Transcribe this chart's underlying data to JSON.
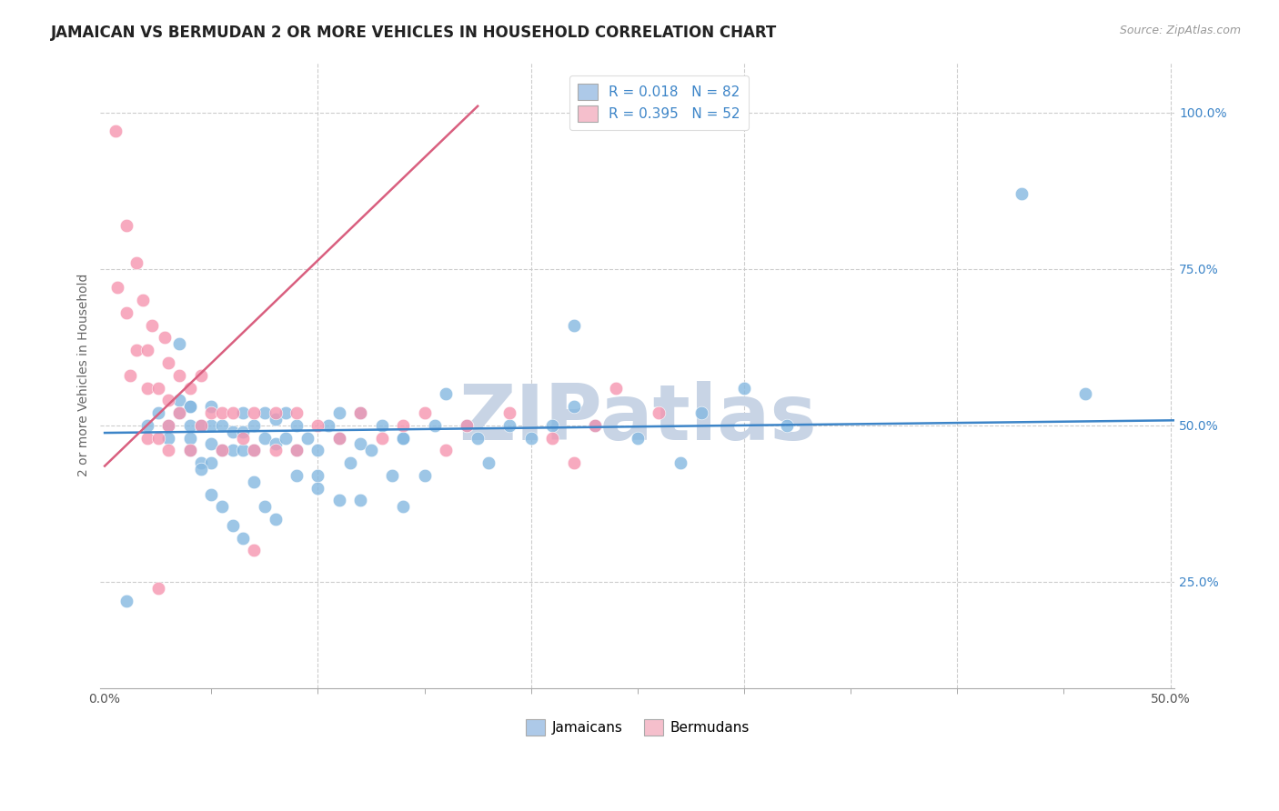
{
  "title": "JAMAICAN VS BERMUDAN 2 OR MORE VEHICLES IN HOUSEHOLD CORRELATION CHART",
  "source_text": "Source: ZipAtlas.com",
  "ylabel": "2 or more Vehicles in Household",
  "xlim": [
    -0.002,
    0.502
  ],
  "ylim": [
    0.08,
    1.08
  ],
  "xtick_labels_bottom": [
    "0.0%",
    "50.0%"
  ],
  "xtick_vals_bottom": [
    0.0,
    0.5
  ],
  "xtick_minor_vals": [
    0.05,
    0.1,
    0.15,
    0.2,
    0.25,
    0.3,
    0.35,
    0.4,
    0.45
  ],
  "xtick_grid_vals": [
    0.1,
    0.2,
    0.3,
    0.4,
    0.5
  ],
  "ytick_labels": [
    "100.0%",
    "75.0%",
    "50.0%",
    "25.0%"
  ],
  "ytick_vals": [
    1.0,
    0.75,
    0.5,
    0.25
  ],
  "ytick_grid_vals": [
    1.0,
    0.75,
    0.5,
    0.25
  ],
  "legend_blue_label": "R = 0.018   N = 82",
  "legend_pink_label": "R = 0.395   N = 52",
  "legend_blue_color": "#adc9e8",
  "legend_pink_color": "#f5bfcc",
  "scatter_blue_color": "#85b8e0",
  "scatter_pink_color": "#f595b0",
  "line_blue_color": "#3d85c8",
  "line_pink_color": "#d95f7f",
  "watermark_text": "ZIPatlas",
  "watermark_color": "#c8d4e5",
  "title_fontsize": 12,
  "axis_label_fontsize": 10,
  "tick_fontsize": 10,
  "legend_fontsize": 11,
  "jamaicans_label": "Jamaicans",
  "bermudans_label": "Bermudans",
  "blue_scatter_x": [
    0.01,
    0.02,
    0.025,
    0.03,
    0.03,
    0.035,
    0.035,
    0.04,
    0.04,
    0.04,
    0.04,
    0.045,
    0.045,
    0.05,
    0.05,
    0.05,
    0.05,
    0.055,
    0.055,
    0.06,
    0.06,
    0.065,
    0.065,
    0.065,
    0.07,
    0.07,
    0.075,
    0.075,
    0.08,
    0.08,
    0.085,
    0.085,
    0.09,
    0.09,
    0.095,
    0.1,
    0.1,
    0.105,
    0.11,
    0.11,
    0.115,
    0.12,
    0.12,
    0.125,
    0.13,
    0.135,
    0.14,
    0.14,
    0.15,
    0.155,
    0.16,
    0.17,
    0.175,
    0.18,
    0.19,
    0.2,
    0.21,
    0.22,
    0.23,
    0.25,
    0.27,
    0.28,
    0.3,
    0.32,
    0.035,
    0.04,
    0.045,
    0.05,
    0.055,
    0.06,
    0.065,
    0.07,
    0.075,
    0.08,
    0.09,
    0.1,
    0.11,
    0.12,
    0.14,
    0.43,
    0.46,
    0.22
  ],
  "blue_scatter_y": [
    0.22,
    0.5,
    0.52,
    0.48,
    0.5,
    0.52,
    0.54,
    0.46,
    0.48,
    0.5,
    0.53,
    0.44,
    0.5,
    0.44,
    0.47,
    0.5,
    0.53,
    0.46,
    0.5,
    0.46,
    0.49,
    0.46,
    0.49,
    0.52,
    0.46,
    0.5,
    0.48,
    0.52,
    0.47,
    0.51,
    0.48,
    0.52,
    0.46,
    0.5,
    0.48,
    0.42,
    0.46,
    0.5,
    0.48,
    0.52,
    0.44,
    0.47,
    0.52,
    0.46,
    0.5,
    0.42,
    0.48,
    0.48,
    0.42,
    0.5,
    0.55,
    0.5,
    0.48,
    0.44,
    0.5,
    0.48,
    0.5,
    0.53,
    0.5,
    0.48,
    0.44,
    0.52,
    0.56,
    0.5,
    0.63,
    0.53,
    0.43,
    0.39,
    0.37,
    0.34,
    0.32,
    0.41,
    0.37,
    0.35,
    0.42,
    0.4,
    0.38,
    0.38,
    0.37,
    0.87,
    0.55,
    0.66
  ],
  "pink_scatter_x": [
    0.005,
    0.006,
    0.01,
    0.01,
    0.012,
    0.015,
    0.015,
    0.018,
    0.02,
    0.02,
    0.02,
    0.022,
    0.025,
    0.025,
    0.028,
    0.03,
    0.03,
    0.03,
    0.03,
    0.035,
    0.035,
    0.04,
    0.04,
    0.045,
    0.045,
    0.05,
    0.055,
    0.055,
    0.06,
    0.065,
    0.07,
    0.07,
    0.08,
    0.08,
    0.09,
    0.09,
    0.1,
    0.11,
    0.12,
    0.13,
    0.14,
    0.15,
    0.16,
    0.17,
    0.19,
    0.21,
    0.22,
    0.23,
    0.24,
    0.26,
    0.07,
    0.025
  ],
  "pink_scatter_y": [
    0.97,
    0.72,
    0.82,
    0.68,
    0.58,
    0.76,
    0.62,
    0.7,
    0.62,
    0.56,
    0.48,
    0.66,
    0.56,
    0.48,
    0.64,
    0.6,
    0.54,
    0.5,
    0.46,
    0.58,
    0.52,
    0.56,
    0.46,
    0.58,
    0.5,
    0.52,
    0.52,
    0.46,
    0.52,
    0.48,
    0.52,
    0.46,
    0.52,
    0.46,
    0.52,
    0.46,
    0.5,
    0.48,
    0.52,
    0.48,
    0.5,
    0.52,
    0.46,
    0.5,
    0.52,
    0.48,
    0.44,
    0.5,
    0.56,
    0.52,
    0.3,
    0.24
  ],
  "blue_line_x": [
    0.0,
    0.502
  ],
  "blue_line_y": [
    0.488,
    0.508
  ],
  "pink_line_x": [
    0.0,
    0.175
  ],
  "pink_line_y": [
    0.435,
    1.01
  ]
}
